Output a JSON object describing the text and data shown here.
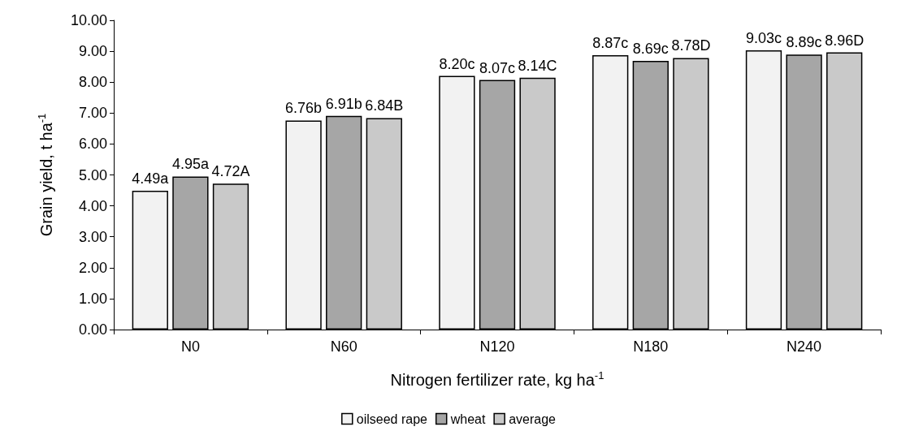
{
  "chart_data": {
    "type": "bar",
    "xlabel": "Nitrogen fertilizer rate, kg ha$^{-1}$",
    "ylabel": "Grain yield, t ha$^{-1}$",
    "categories": [
      "N0",
      "N60",
      "N120",
      "N180",
      "N240"
    ],
    "series": [
      {
        "name": "oilseed rape",
        "color": "#f2f2f2",
        "values": [
          4.49,
          6.76,
          8.2,
          8.87,
          9.03
        ],
        "value_labels": [
          "4.49a",
          "6.76b",
          "8.20c",
          "8.87c",
          "9.03c"
        ]
      },
      {
        "name": "wheat",
        "color": "#a6a6a6",
        "values": [
          4.95,
          6.91,
          8.07,
          8.69,
          8.89
        ],
        "value_labels": [
          "4.95a",
          "6.91b",
          "8.07c",
          "8.69c",
          "8.89c"
        ]
      },
      {
        "name": "average",
        "color": "#c9c9c9",
        "values": [
          4.72,
          6.84,
          8.14,
          8.78,
          8.96
        ],
        "value_labels": [
          "4.72A",
          "6.84B",
          "8.14C",
          "8.78D",
          "8.96D"
        ]
      }
    ],
    "ylim": [
      0,
      10
    ],
    "yticks": [
      {
        "value": 0,
        "label": "0.00"
      },
      {
        "value": 1,
        "label": "1.00"
      },
      {
        "value": 2,
        "label": "2.00"
      },
      {
        "value": 3,
        "label": "3.00"
      },
      {
        "value": 4,
        "label": "4.00"
      },
      {
        "value": 5,
        "label": "5.00"
      },
      {
        "value": 6,
        "label": "6.00"
      },
      {
        "value": 7,
        "label": "7.00"
      },
      {
        "value": 8,
        "label": "8.00"
      },
      {
        "value": 9,
        "label": "9.00"
      },
      {
        "value": 10,
        "label": "10.00"
      }
    ],
    "grid": false,
    "legend": "bottom"
  }
}
